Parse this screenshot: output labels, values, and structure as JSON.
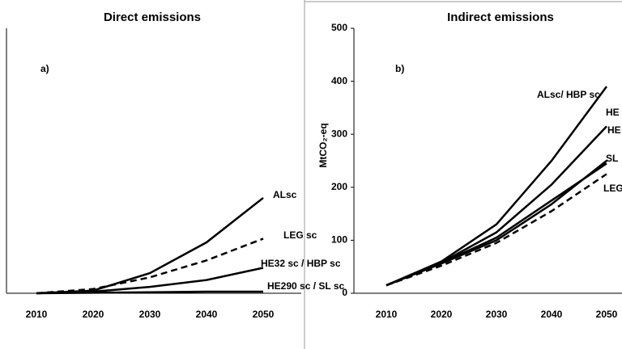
{
  "chart_data": [
    {
      "type": "line",
      "title": "Direct emissions",
      "annotation": "a)",
      "categories": [
        "2010",
        "2020",
        "2030",
        "2040",
        "2050"
      ],
      "ylim": [
        0,
        500
      ],
      "series": [
        {
          "name": "ALsc",
          "color": "#000",
          "dash": false,
          "values": [
            0,
            5,
            38,
            96,
            180
          ]
        },
        {
          "name": "LEG sc",
          "color": "#000",
          "dash": true,
          "values": [
            0,
            8,
            30,
            62,
            103
          ]
        },
        {
          "name": "HE32 sc / HBP sc",
          "color": "#000",
          "dash": false,
          "values": [
            0,
            3,
            12,
            25,
            48
          ]
        },
        {
          "name": "HE290 sc / SL sc",
          "color": "#000",
          "dash": false,
          "values": [
            0,
            1,
            2,
            3,
            3
          ]
        }
      ]
    },
    {
      "type": "line",
      "title": "Indirect emissions",
      "annotation": "b)",
      "y_label": "MtCO₂-eq",
      "categories": [
        "2010",
        "2020",
        "2030",
        "2040",
        "2050"
      ],
      "ylim": [
        0,
        500
      ],
      "yticks": [
        0,
        100,
        200,
        300,
        400,
        500
      ],
      "series": [
        {
          "name": "ALsc/ HBP sc",
          "color": "#000",
          "dash": false,
          "values": [
            15,
            60,
            130,
            250,
            390
          ]
        },
        {
          "name": "HE",
          "color": "#000",
          "dash": false,
          "values": [
            15,
            58,
            115,
            205,
            315
          ]
        },
        {
          "name": "HE",
          "color": "#000",
          "dash": false,
          "values": [
            15,
            57,
            105,
            175,
            245
          ]
        },
        {
          "name": "SL",
          "color": "#000",
          "dash": false,
          "values": [
            15,
            56,
            100,
            168,
            250
          ]
        },
        {
          "name": "LEG",
          "color": "#000",
          "dash": true,
          "values": [
            15,
            52,
            95,
            155,
            225
          ]
        }
      ]
    }
  ]
}
